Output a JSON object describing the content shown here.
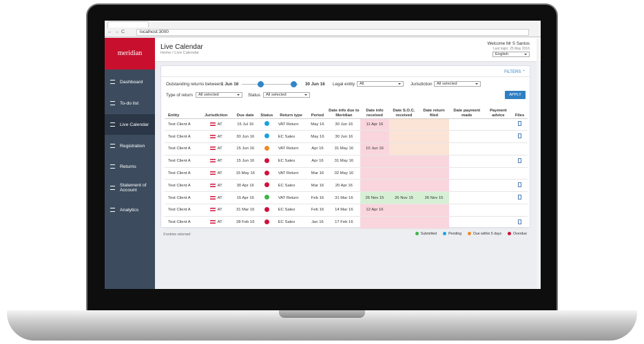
{
  "browser": {
    "url": "localhost:3000"
  },
  "sidebar": {
    "logo": "meridian",
    "items": [
      "Dashboard",
      "To-do list",
      "Live Calendar",
      "Registration",
      "Returns",
      "Statement of Account",
      "Analytics"
    ],
    "active": 2
  },
  "header": {
    "title": "Live Calendar",
    "breadcrumb": "Home / Live Calendar",
    "welcome": "Welcome Mr S Santos",
    "last_login": "Last login: 25 May 2016",
    "language": "English"
  },
  "filters": {
    "toggle": "FILTERS",
    "outstanding_label": "Outstanding returns between",
    "range_start": "1 Jun 16",
    "range_end": "30 Jun 16",
    "legal_entity_label": "Legal entity",
    "legal_entity_value": "All",
    "jurisdiction_label": "Jurisdiction",
    "jurisdiction_value": "All selected",
    "type_label": "Type of return",
    "type_value": "All selected",
    "status_label": "Status",
    "status_value": "All selected",
    "apply": "APPLY"
  },
  "table": {
    "columns": [
      "Entity",
      "Jurisdiction",
      "Due date",
      "Status",
      "Return type",
      "Period",
      "Date info due to Meridian",
      "Date info received",
      "Date S.O.C. received",
      "Date return filed",
      "Date payment made",
      "Payment advice",
      "Files"
    ],
    "rows": [
      {
        "entity": "Test Client A",
        "jurisdiction": "AT",
        "due_date": "15 Jul 16",
        "status_color": "#1aa3d9",
        "return_type": "VAT Return",
        "period": "May 16",
        "date_info_due": "30 Jun 16",
        "date_info_received": "11 Apr 16",
        "date_soc_received": null,
        "date_return_filed": null,
        "has_file": true
      },
      {
        "entity": "Test Client A",
        "jurisdiction": "AT",
        "due_date": "30 Jun 16",
        "status_color": "#1aa3d9",
        "return_type": "EC Sales",
        "period": "May 16",
        "date_info_due": "30 Jun 16",
        "date_info_received": null,
        "date_soc_received": null,
        "date_return_filed": null,
        "has_file": true
      },
      {
        "entity": "Test Client A",
        "jurisdiction": "AT",
        "due_date": "15 Jun 16",
        "status_color": "#f08a24",
        "return_type": "VAT Return",
        "period": "Apr 16",
        "date_info_due": "31 May 16",
        "date_info_received": "10 Jun 16",
        "date_soc_received": null,
        "date_return_filed": null,
        "has_file": false
      },
      {
        "entity": "Test Client A",
        "jurisdiction": "AT",
        "due_date": "15 Jun 16",
        "status_color": "#d0103a",
        "return_type": "EC Sales",
        "period": "Apr 16",
        "date_info_due": "31 May 16",
        "date_info_received": null,
        "date_soc_received": null,
        "date_return_filed": null,
        "has_file": true
      },
      {
        "entity": "Test Client A",
        "jurisdiction": "AT",
        "due_date": "15 May 16",
        "status_color": "#d0103a",
        "return_type": "VAT Return",
        "period": "Mar 16",
        "date_info_due": "02 May 16",
        "date_info_received": null,
        "date_soc_received": null,
        "date_return_filed": null,
        "has_file": false
      },
      {
        "entity": "Test Client A",
        "jurisdiction": "AT",
        "due_date": "30 Apr 16",
        "status_color": "#d0103a",
        "return_type": "EC Sales",
        "period": "Mar 16",
        "date_info_due": "20 Apr 16",
        "date_info_received": null,
        "date_soc_received": null,
        "date_return_filed": null,
        "has_file": true
      },
      {
        "entity": "Test Client A",
        "jurisdiction": "AT",
        "due_date": "15 Apr 16",
        "status_color": "#3bb54a",
        "return_type": "VAT Return",
        "period": "Feb 16",
        "date_info_due": "31 Mar 16",
        "date_info_received": "26 Nov 15",
        "date_soc_received": "26 Nov 15",
        "date_return_filed": "26 Nov 15",
        "has_file": true
      },
      {
        "entity": "Test Client A",
        "jurisdiction": "AT",
        "due_date": "31 Mar 16",
        "status_color": "#d0103a",
        "return_type": "EC Sales",
        "period": "Feb 16",
        "date_info_due": "14 Mar 16",
        "date_info_received": "12 Apr 16",
        "date_soc_received": null,
        "date_return_filed": null,
        "has_file": false
      },
      {
        "entity": "Test Client A",
        "jurisdiction": "AT",
        "due_date": "28 Feb 16",
        "status_color": "#d0103a",
        "return_type": "EC Sales",
        "period": "Jan 16",
        "date_info_due": "17 Feb 16",
        "date_info_received": null,
        "date_soc_received": null,
        "date_return_filed": null,
        "has_file": true
      }
    ]
  },
  "footer": {
    "entries": "9 entries returned",
    "legend": [
      {
        "label": "Submitted",
        "color": "#3bb54a"
      },
      {
        "label": "Pending",
        "color": "#1aa3d9"
      },
      {
        "label": "Due within 5 days",
        "color": "#f08a24"
      },
      {
        "label": "Overdue",
        "color": "#d0103a"
      }
    ]
  }
}
